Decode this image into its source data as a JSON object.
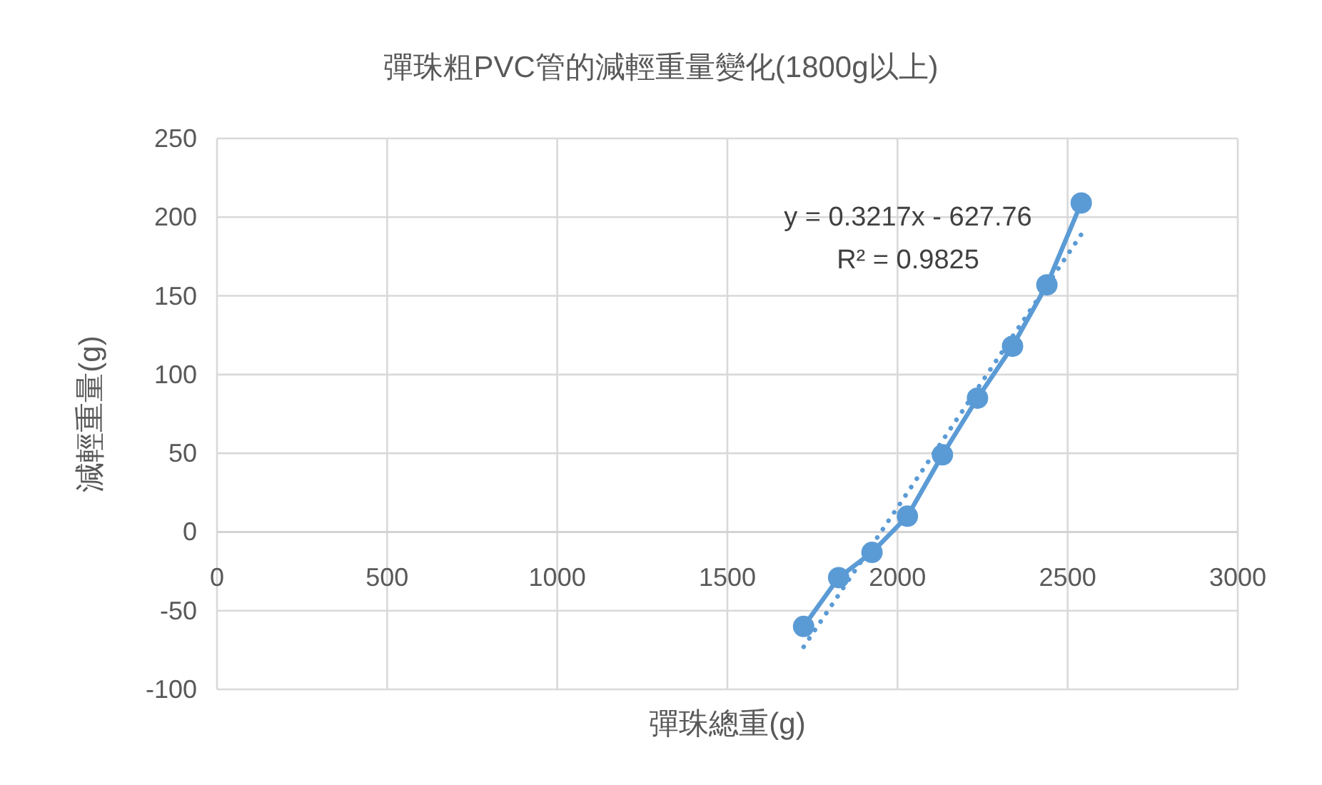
{
  "chart_data": {
    "type": "line",
    "title": "彈珠粗PVC管的減輕重量變化(1800g以上)",
    "xlabel": "彈珠總重(g)",
    "ylabel": "減輕重量(g)",
    "x": [
      1724,
      1827,
      1925,
      2029,
      2132,
      2235,
      2338,
      2439,
      2540
    ],
    "series": [
      {
        "color": "#5b9bd5",
        "marker": "none",
        "line_style": "dotted",
        "x": [
          1724,
          2540
        ],
        "values": [
          -73,
          189
        ]
      },
      {
        "color": "#5b9bd5",
        "marker": "circle",
        "line_style": "solid",
        "values": [
          -60,
          -29,
          -13,
          10,
          49,
          85,
          118,
          157,
          209
        ]
      }
    ],
    "xlim": [
      0,
      3000
    ],
    "xticks": [
      0,
      500,
      1000,
      1500,
      2000,
      2500,
      3000
    ],
    "ylim": [
      -100,
      250
    ],
    "yticks": [
      -100,
      -50,
      0,
      50,
      100,
      150,
      200,
      250
    ],
    "grid": true,
    "annotations": [
      "y = 0.3217x - 627.76",
      "R² = 0.9825"
    ]
  }
}
